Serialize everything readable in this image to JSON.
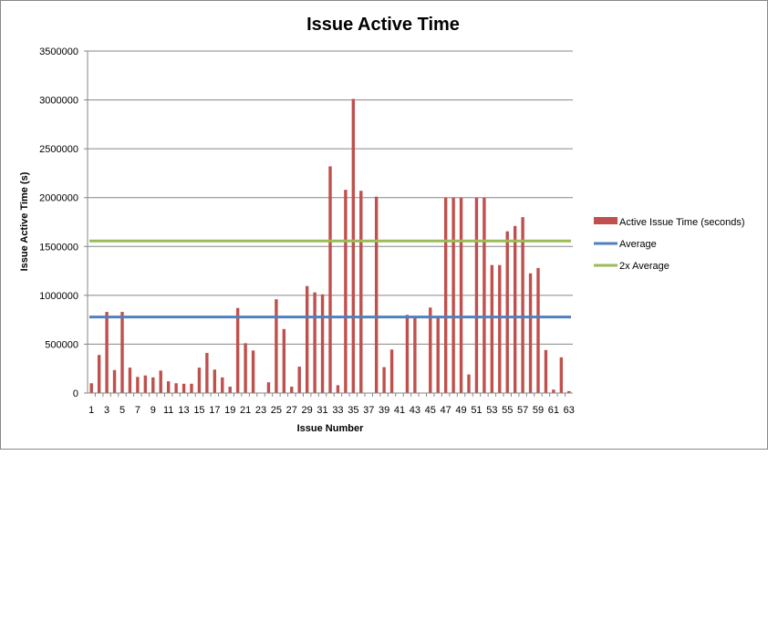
{
  "chart_data": {
    "type": "bar",
    "title": "Issue Active Time",
    "xlabel": "Issue Number",
    "ylabel": "Issue Active Time (s)",
    "ylim": [
      0,
      3500000
    ],
    "yticks": [
      0,
      500000,
      1000000,
      1500000,
      2000000,
      2500000,
      3000000,
      3500000
    ],
    "ytick_labels": [
      "0",
      "500000",
      "1000000",
      "1500000",
      "2000000",
      "2500000",
      "3000000",
      "3500000"
    ],
    "grid": true,
    "legend_position": "right",
    "categories": [
      "1",
      "2",
      "3",
      "4",
      "5",
      "6",
      "7",
      "8",
      "9",
      "10",
      "11",
      "12",
      "13",
      "14",
      "15",
      "16",
      "17",
      "18",
      "19",
      "20",
      "21",
      "22",
      "23",
      "24",
      "25",
      "26",
      "27",
      "28",
      "29",
      "30",
      "31",
      "32",
      "33",
      "34",
      "35",
      "36",
      "37",
      "38",
      "39",
      "40",
      "41",
      "42",
      "43",
      "44",
      "45",
      "46",
      "47",
      "48",
      "49",
      "50",
      "51",
      "52",
      "53",
      "54",
      "55",
      "56",
      "57",
      "58",
      "59",
      "60",
      "61",
      "62",
      "63"
    ],
    "x_tick_labels_shown": [
      "1",
      "3",
      "5",
      "7",
      "9",
      "11",
      "13",
      "15",
      "17",
      "19",
      "21",
      "23",
      "25",
      "27",
      "29",
      "31",
      "33",
      "35",
      "37",
      "39",
      "41",
      "43",
      "45",
      "47",
      "49",
      "51",
      "53",
      "55",
      "57",
      "59",
      "61",
      "63"
    ],
    "series": [
      {
        "name": "Active Issue Time (seconds)",
        "kind": "bar",
        "color": "#c0504d",
        "values": [
          100000,
          390000,
          830000,
          235000,
          830000,
          260000,
          165000,
          180000,
          160000,
          230000,
          120000,
          100000,
          95000,
          95000,
          260000,
          410000,
          240000,
          160000,
          65000,
          870000,
          510000,
          435000,
          0,
          110000,
          960000,
          655000,
          65000,
          270000,
          1095000,
          1030000,
          1010000,
          2320000,
          80000,
          2080000,
          3010000,
          2070000,
          0,
          2010000,
          265000,
          445000,
          0,
          800000,
          790000,
          0,
          875000,
          790000,
          2000000,
          2000000,
          2000000,
          190000,
          2000000,
          2000000,
          1310000,
          1310000,
          1655000,
          1710000,
          1800000,
          1225000,
          1280000,
          440000,
          35000,
          365000,
          20000
        ]
      },
      {
        "name": "Average",
        "kind": "line",
        "color": "#4f81bd",
        "value": 778000
      },
      {
        "name": "2x Average",
        "kind": "line",
        "color": "#9bbb59",
        "value": 1556000
      }
    ]
  }
}
